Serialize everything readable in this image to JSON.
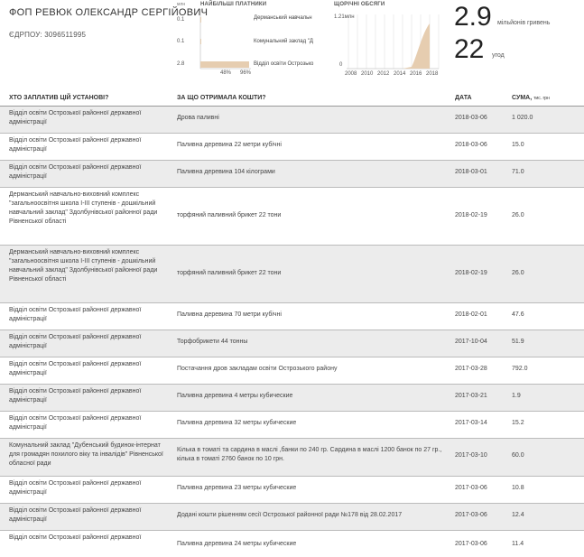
{
  "header": {
    "title": "ФОП РЕВЮК ОЛЕКСАНДР СЕРГІЙОВИЧ",
    "edrpou": "ЄДРПОУ: 3096511995"
  },
  "top_payers": {
    "unit": "млн",
    "title": "НАЙБІЛЬШІ ПЛАТНИКИ",
    "rows": [
      {
        "value": "0.1",
        "name": "Дерманський навчальн",
        "pct": ""
      },
      {
        "value": "0.1",
        "name": "Комунальний заклад \"Д",
        "pct": ""
      },
      {
        "value": "2.8",
        "name": "Відділ освіти Острозько",
        "pct": "96%"
      }
    ],
    "extra_pct": "48%",
    "bar_share": 0.96
  },
  "yearly": {
    "title": "ЩОРІЧНІ ОБСЯГИ",
    "ymax_label": "1.21млн",
    "ymin_label": "0",
    "years": [
      "2008",
      "2010",
      "2012",
      "2014",
      "2016",
      "2018"
    ]
  },
  "totals": {
    "amount": "2.9",
    "amount_label": "мільйонів гривень",
    "count": "22",
    "count_label": "угод"
  },
  "table": {
    "headers": {
      "payer": "ХТО ЗАПЛАТИВ ЦІЙ УСТАНОВІ?",
      "purpose": "ЗА ЩО ОТРИМАЛА КОШТИ?",
      "date": "ДАТА",
      "sum": "СУМА,",
      "sum_unit": "тис. грн"
    },
    "rows": [
      {
        "payer": "Відділ освіти Острозької районної державної адміністрації",
        "purpose": "Дрова паливні",
        "date": "2018-03-06",
        "sum": "1 020.0"
      },
      {
        "payer": "Відділ освіти Острозької районної державної адміністрації",
        "purpose": "Паливна деревина 22 метри кубічні",
        "date": "2018-03-06",
        "sum": "15.0"
      },
      {
        "payer": "Відділ освіти Острозької районної державної адміністрації",
        "purpose": "Паливна деревина 104 кілограми",
        "date": "2018-03-01",
        "sum": "71.0"
      },
      {
        "payer": "Дерманський навчально-виховний комплекс \"загальноосвітня школа І-ІІІ ступенів - дошкільний навчальний заклад\" Здолбунівської районної ради Рівненської області",
        "purpose": "торфяний паливний брикет 22 тони",
        "date": "2018-02-19",
        "sum": "26.0"
      },
      {
        "payer": "Дерманський навчально-виховний комплекс \"загальноосвітня школа І-ІІІ ступенів - дошкільний навчальний заклад\" Здолбунівської районної ради Рівненської області",
        "purpose": "торфяний паливний брикет 22 тони",
        "date": "2018-02-19",
        "sum": "26.0"
      },
      {
        "payer": "Відділ освіти Острозької районної державної адміністрації",
        "purpose": "Паливна деревина 70 метри кубічні",
        "date": "2018-02-01",
        "sum": "47.6"
      },
      {
        "payer": "Відділ освіти Острозької районної державної адміністрації",
        "purpose": "Торфобрикети 44 тонны",
        "date": "2017-10-04",
        "sum": "51.9"
      },
      {
        "payer": "Відділ освіти Острозької районної державної адміністрації",
        "purpose": "Постачання дров закладам освіти Острозького району",
        "date": "2017-03-28",
        "sum": "792.0"
      },
      {
        "payer": "Відділ освіти Острозької районної державної адміністрації",
        "purpose": "Паливна деревина 4 метры кубические",
        "date": "2017-03-21",
        "sum": "1.9"
      },
      {
        "payer": "Відділ освіти Острозької районної державної адміністрації",
        "purpose": "Паливна деревина 32 метры кубические",
        "date": "2017-03-14",
        "sum": "15.2"
      },
      {
        "payer": "Комунальний заклад \"Дубенський будинок-інтернат для громадян похилого віку та інвалідів\" Рівненської обласної ради",
        "purpose": "Кілька в томаті та сардина в маслі ,банки по 240 гр. Сардина в маслі 1200 банок по 27 гр., кілька в томаті 2760 банок по 10 грн.",
        "date": "2017-03-10",
        "sum": "60.0"
      },
      {
        "payer": "Відділ освіти Острозької районної державної адміністрації",
        "purpose": "Паливна деревина 23 метры кубические",
        "date": "2017-03-06",
        "sum": "10.8"
      },
      {
        "payer": "Відділ освіти Острозької районної державної адміністрації",
        "purpose": "Додані кошти рішенням сесії Острозької районної ради №178 від 28.02.2017",
        "date": "2017-03-06",
        "sum": "12.4"
      },
      {
        "payer": "Відділ освіти Острозької районної державної",
        "purpose": "Паливна деревина 24 метры кубические",
        "date": "2017-03-06",
        "sum": "11.4"
      }
    ]
  }
}
